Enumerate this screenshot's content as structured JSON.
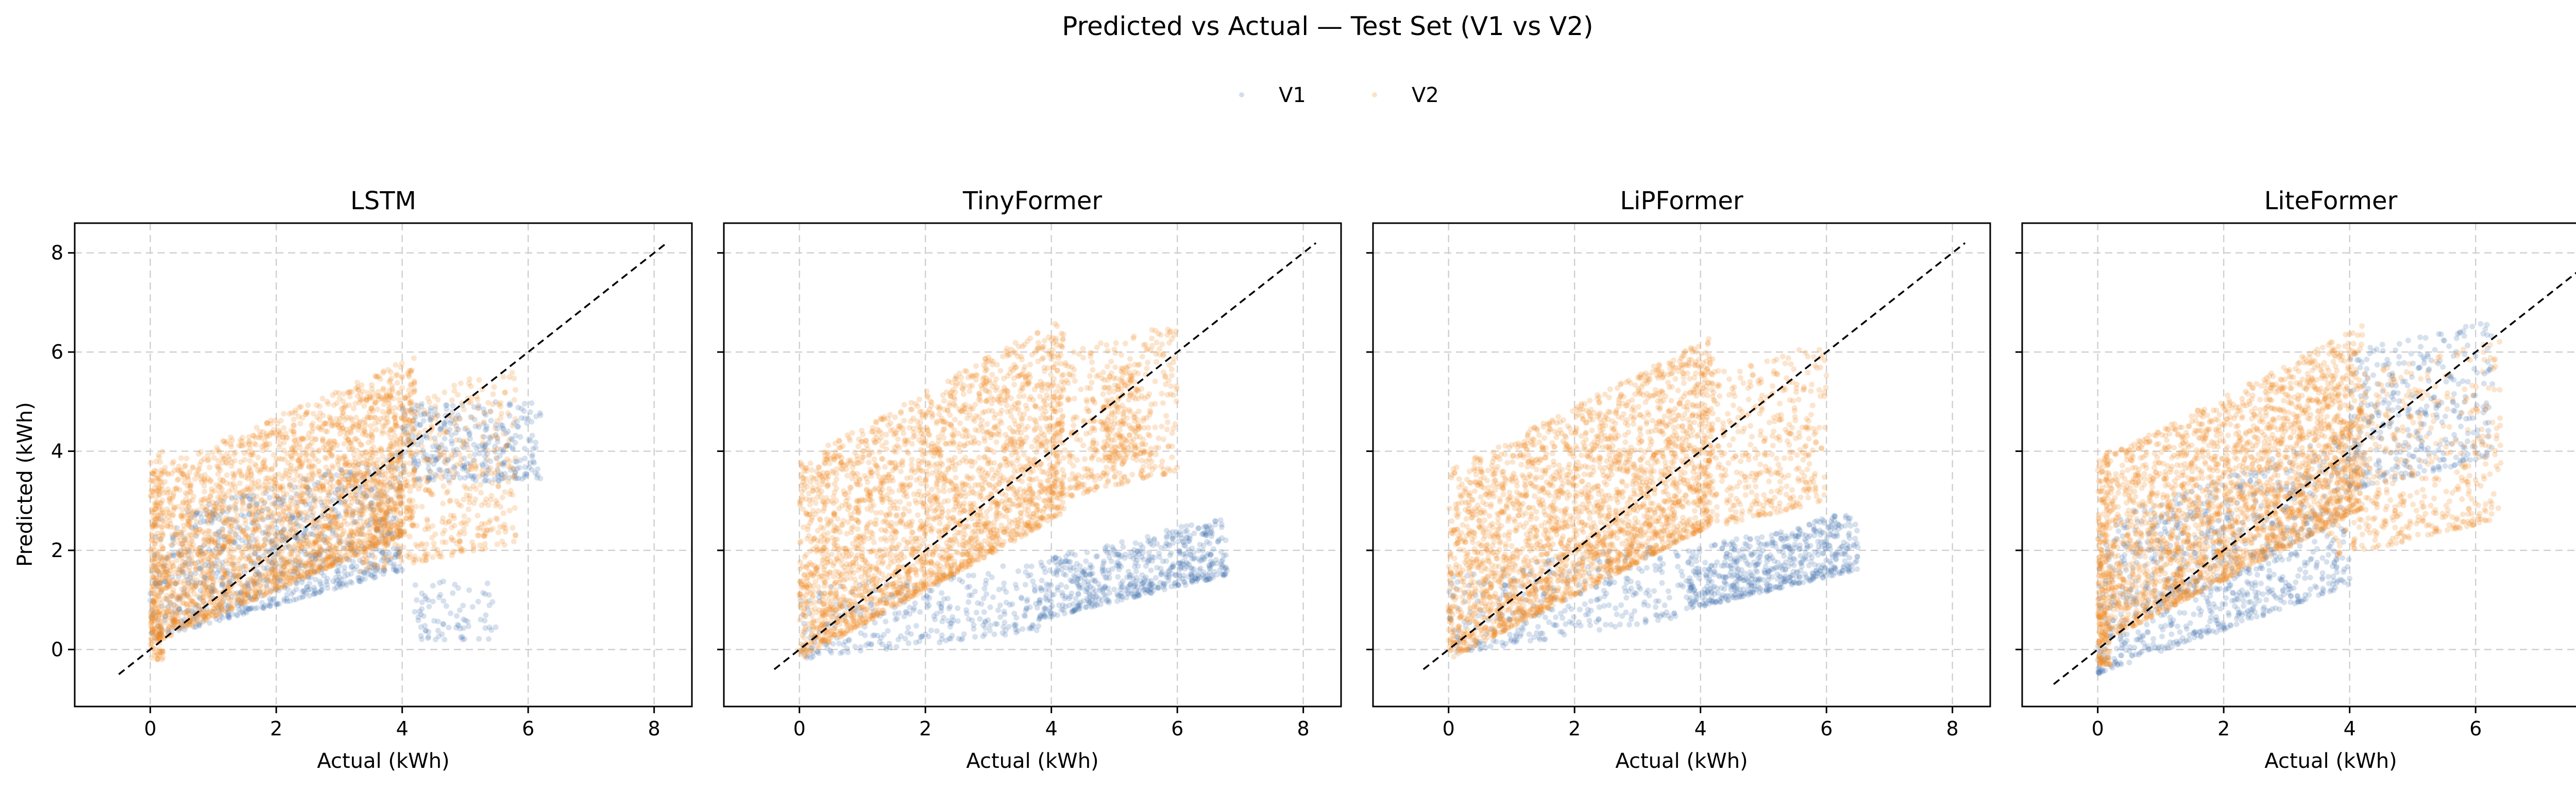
{
  "chart_data": {
    "type": "scatter",
    "title": "Predicted vs Actual — Test Set (V1 vs V2)",
    "legend": {
      "placement": "top-center",
      "entries": [
        "V1",
        "V2"
      ]
    },
    "colors": {
      "V1": "#4a77b0",
      "V2": "#f28a1e",
      "ideal_line": "#000000",
      "grid": "#cfcfcf"
    },
    "shared_ylabel": "Predicted (kWh)",
    "xlabel": "Actual (kWh)",
    "xlim": [
      -1.2,
      8.6
    ],
    "ylim": [
      -1.15,
      8.6
    ],
    "xticks": [
      0,
      2,
      4,
      6,
      8
    ],
    "yticks": [
      0,
      2,
      4,
      6,
      8
    ],
    "grid": true,
    "panels": [
      {
        "title": "LSTM",
        "ideal_line": [
          [
            -0.5,
            -0.5
          ],
          [
            8.2,
            8.2
          ]
        ],
        "series": [
          {
            "name": "V1",
            "clusters": [
              {
                "x": [
                  0,
                  4
                ],
                "y_low": 0.2,
                "y_high": 2.6,
                "slope": 0.35,
                "n": 900
              },
              {
                "x": [
                  4,
                  6.2
                ],
                "y_low": 3.4,
                "y_high": 5.0,
                "slope": 0.0,
                "n": 320
              },
              {
                "x": [
                  4.2,
                  5.5
                ],
                "y_low": 0.2,
                "y_high": 1.4,
                "slope": 0.0,
                "n": 80
              }
            ]
          },
          {
            "name": "V2",
            "clusters": [
              {
                "x": [
                  0,
                  4.2
                ],
                "y_low": 0.1,
                "y_high": 3.6,
                "slope": 0.55,
                "n": 2600
              },
              {
                "x": [
                  3.2,
                  5.8
                ],
                "y_low": 1.5,
                "y_high": 5.0,
                "slope": 0.25,
                "n": 520
              },
              {
                "x": [
                  0,
                  0.2
                ],
                "y_low": -0.2,
                "y_high": 4.0,
                "slope": 0.0,
                "n": 150
              }
            ]
          }
        ]
      },
      {
        "title": "TinyFormer",
        "ideal_line": [
          [
            -0.4,
            -0.4
          ],
          [
            8.2,
            8.2
          ]
        ],
        "series": [
          {
            "name": "V1",
            "clusters": [
              {
                "x": [
                  3.8,
                  6.8
                ],
                "y_low": 0.6,
                "y_high": 1.8,
                "slope": 0.3,
                "n": 600
              },
              {
                "x": [
                  0,
                  3.8
                ],
                "y_low": -0.2,
                "y_high": 1.2,
                "slope": 0.15,
                "n": 300
              }
            ]
          },
          {
            "name": "V2",
            "clusters": [
              {
                "x": [
                  0,
                  4.2
                ],
                "y_low": -0.2,
                "y_high": 3.8,
                "slope": 0.7,
                "n": 2600
              },
              {
                "x": [
                  4.0,
                  6.0
                ],
                "y_low": 3.0,
                "y_high": 6.0,
                "slope": 0.3,
                "n": 420
              },
              {
                "x": [
                  4.8,
                  5.4
                ],
                "y_low": 3.8,
                "y_high": 5.6,
                "slope": 0.0,
                "n": 140
              }
            ]
          }
        ]
      },
      {
        "title": "LiPFormer",
        "ideal_line": [
          [
            -0.4,
            -0.4
          ],
          [
            8.2,
            8.2
          ]
        ],
        "series": [
          {
            "name": "V1",
            "clusters": [
              {
                "x": [
                  3.8,
                  6.5
                ],
                "y_low": 0.8,
                "y_high": 2.0,
                "slope": 0.3,
                "n": 600
              },
              {
                "x": [
                  0,
                  3.8
                ],
                "y_low": -0.1,
                "y_high": 1.5,
                "slope": 0.2,
                "n": 320
              }
            ]
          },
          {
            "name": "V2",
            "clusters": [
              {
                "x": [
                  0,
                  4.2
                ],
                "y_low": -0.2,
                "y_high": 3.6,
                "slope": 0.65,
                "n": 2600
              },
              {
                "x": [
                  4.0,
                  6.0
                ],
                "y_low": 2.4,
                "y_high": 5.6,
                "slope": 0.3,
                "n": 420
              }
            ]
          }
        ]
      },
      {
        "title": "LiteFormer",
        "ideal_line": [
          [
            -0.7,
            -0.7
          ],
          [
            8.2,
            8.2
          ]
        ],
        "series": [
          {
            "name": "V1",
            "clusters": [
              {
                "x": [
                  0,
                  4
                ],
                "y_low": -0.5,
                "y_high": 2.6,
                "slope": 0.45,
                "n": 900
              },
              {
                "x": [
                  4.0,
                  6.3
                ],
                "y_low": 3.2,
                "y_high": 6.0,
                "slope": 0.3,
                "n": 360
              }
            ]
          },
          {
            "name": "V2",
            "clusters": [
              {
                "x": [
                  0,
                  4.2
                ],
                "y_low": 0.1,
                "y_high": 3.8,
                "slope": 0.65,
                "n": 2600
              },
              {
                "x": [
                  3.6,
                  6.4
                ],
                "y_low": 1.8,
                "y_high": 5.4,
                "slope": 0.3,
                "n": 520
              },
              {
                "x": [
                  0,
                  0.2
                ],
                "y_low": -0.3,
                "y_high": 4.0,
                "slope": 0.0,
                "n": 150
              }
            ]
          }
        ]
      }
    ]
  }
}
